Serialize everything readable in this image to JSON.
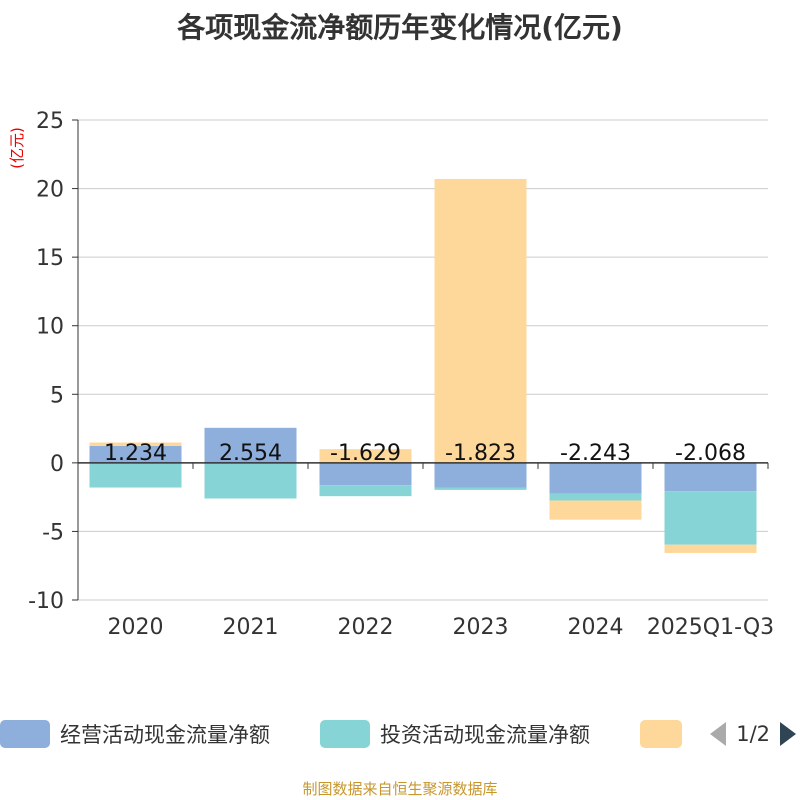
{
  "chart_data": {
    "type": "bar",
    "stacked": true,
    "title": "各项现金流净额历年变化情况(亿元)",
    "ylabel": "(亿元)",
    "xlabel": "",
    "ylim": [
      -10,
      25
    ],
    "yticks": [
      -10,
      -5,
      0,
      5,
      10,
      15,
      20,
      25
    ],
    "grid": true,
    "categories": [
      "2020",
      "2021",
      "2022",
      "2023",
      "2024",
      "2025Q1-Q3"
    ],
    "series": [
      {
        "name": "经营活动现金流量净额",
        "color": "#8eaedb",
        "values": [
          1.234,
          2.554,
          -1.629,
          -1.823,
          -2.243,
          -2.068
        ],
        "show_labels": true
      },
      {
        "name": "投资活动现金流量净额",
        "color": "#86d4d6",
        "values": [
          -1.8,
          -2.6,
          -0.8,
          -0.15,
          -0.5,
          -3.9
        ],
        "show_labels": false
      },
      {
        "name": "",
        "color": "#fdd89a",
        "values": [
          0.25,
          0.0,
          1.0,
          20.7,
          -1.4,
          -0.6
        ],
        "show_labels": false
      }
    ],
    "legend_position": "bottom",
    "data_labels": [
      "1.234",
      "2.554",
      "-1.629",
      "-1.823",
      "-2.243",
      "-2.068"
    ]
  },
  "legend": {
    "items": [
      {
        "label": "经营活动现金流量净额",
        "color": "#8eaedb"
      },
      {
        "label": "投资活动现金流量净额",
        "color": "#86d4d6"
      },
      {
        "label": "",
        "color": "#fdd89a"
      }
    ],
    "page": "1/2"
  },
  "source": "制图数据来自恒生聚源数据库"
}
